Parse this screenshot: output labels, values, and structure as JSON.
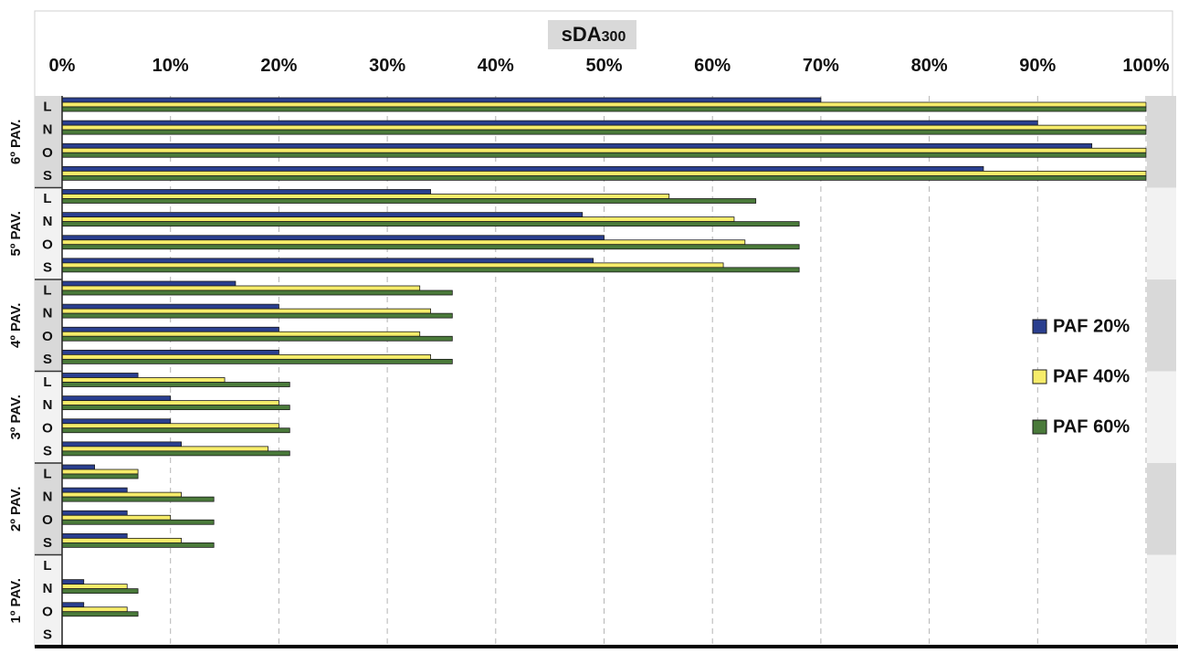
{
  "chart_data": {
    "type": "bar",
    "orientation": "horizontal",
    "title_main": "sDA",
    "title_sub": "300",
    "xlim": [
      0,
      100
    ],
    "xticks": [
      "0%",
      "10%",
      "20%",
      "30%",
      "40%",
      "50%",
      "60%",
      "70%",
      "80%",
      "90%",
      "100%"
    ],
    "grid": "vertical dashed",
    "legend_position": "right",
    "colors": {
      "PAF 20%": "#2a3f8f",
      "PAF 40%": "#f6ec6a",
      "PAF 60%": "#4a7a3a",
      "band_dark": "#d9d9d9",
      "band_light": "#f2f2f2"
    },
    "groups": [
      {
        "label": "6º PAV.",
        "rows": [
          {
            "orientation": "L",
            "values": {
              "PAF 20%": 70,
              "PAF 40%": 100,
              "PAF 60%": 100
            }
          },
          {
            "orientation": "N",
            "values": {
              "PAF 20%": 90,
              "PAF 40%": 100,
              "PAF 60%": 100
            }
          },
          {
            "orientation": "O",
            "values": {
              "PAF 20%": 95,
              "PAF 40%": 100,
              "PAF 60%": 100
            }
          },
          {
            "orientation": "S",
            "values": {
              "PAF 20%": 85,
              "PAF 40%": 100,
              "PAF 60%": 100
            }
          }
        ]
      },
      {
        "label": "5º PAV.",
        "rows": [
          {
            "orientation": "L",
            "values": {
              "PAF 20%": 34,
              "PAF 40%": 56,
              "PAF 60%": 64
            }
          },
          {
            "orientation": "N",
            "values": {
              "PAF 20%": 48,
              "PAF 40%": 62,
              "PAF 60%": 68
            }
          },
          {
            "orientation": "O",
            "values": {
              "PAF 20%": 50,
              "PAF 40%": 63,
              "PAF 60%": 68
            }
          },
          {
            "orientation": "S",
            "values": {
              "PAF 20%": 49,
              "PAF 40%": 61,
              "PAF 60%": 68
            }
          }
        ]
      },
      {
        "label": "4º PAV.",
        "rows": [
          {
            "orientation": "L",
            "values": {
              "PAF 20%": 16,
              "PAF 40%": 33,
              "PAF 60%": 36
            }
          },
          {
            "orientation": "N",
            "values": {
              "PAF 20%": 20,
              "PAF 40%": 34,
              "PAF 60%": 36
            }
          },
          {
            "orientation": "O",
            "values": {
              "PAF 20%": 20,
              "PAF 40%": 33,
              "PAF 60%": 36
            }
          },
          {
            "orientation": "S",
            "values": {
              "PAF 20%": 20,
              "PAF 40%": 34,
              "PAF 60%": 36
            }
          }
        ]
      },
      {
        "label": "3º PAV.",
        "rows": [
          {
            "orientation": "L",
            "values": {
              "PAF 20%": 7,
              "PAF 40%": 15,
              "PAF 60%": 21
            }
          },
          {
            "orientation": "N",
            "values": {
              "PAF 20%": 10,
              "PAF 40%": 20,
              "PAF 60%": 21
            }
          },
          {
            "orientation": "O",
            "values": {
              "PAF 20%": 10,
              "PAF 40%": 20,
              "PAF 60%": 21
            }
          },
          {
            "orientation": "S",
            "values": {
              "PAF 20%": 11,
              "PAF 40%": 19,
              "PAF 60%": 21
            }
          }
        ]
      },
      {
        "label": "2º PAV.",
        "rows": [
          {
            "orientation": "L",
            "values": {
              "PAF 20%": 3,
              "PAF 40%": 7,
              "PAF 60%": 7
            }
          },
          {
            "orientation": "N",
            "values": {
              "PAF 20%": 6,
              "PAF 40%": 11,
              "PAF 60%": 14
            }
          },
          {
            "orientation": "O",
            "values": {
              "PAF 20%": 6,
              "PAF 40%": 10,
              "PAF 60%": 14
            }
          },
          {
            "orientation": "S",
            "values": {
              "PAF 20%": 6,
              "PAF 40%": 11,
              "PAF 60%": 14
            }
          }
        ]
      },
      {
        "label": "1º PAV.",
        "rows": [
          {
            "orientation": "L",
            "values": {
              "PAF 20%": 0,
              "PAF 40%": 0,
              "PAF 60%": 0
            }
          },
          {
            "orientation": "N",
            "values": {
              "PAF 20%": 2,
              "PAF 40%": 6,
              "PAF 60%": 7
            }
          },
          {
            "orientation": "O",
            "values": {
              "PAF 20%": 2,
              "PAF 40%": 6,
              "PAF 60%": 7
            }
          },
          {
            "orientation": "S",
            "values": {
              "PAF 20%": 0,
              "PAF 40%": 0,
              "PAF 60%": 0
            }
          }
        ]
      }
    ],
    "series": [
      {
        "name": "PAF 20%"
      },
      {
        "name": "PAF 40%"
      },
      {
        "name": "PAF 60%"
      }
    ]
  }
}
